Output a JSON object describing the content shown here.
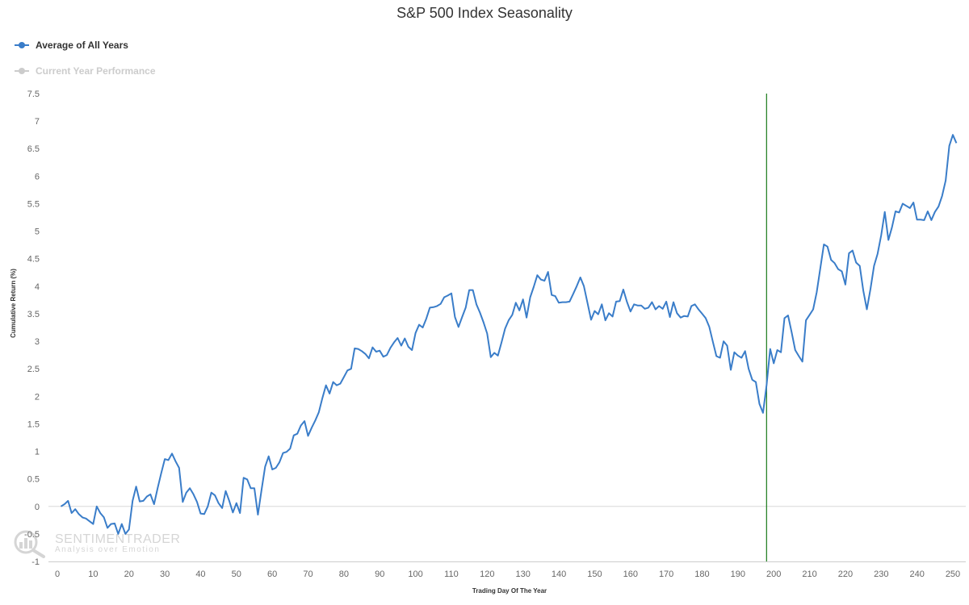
{
  "chart_data": {
    "type": "line",
    "title": "S&P 500 Index Seasonality",
    "xlabel": "Trading Day Of The Year",
    "ylabel": "Cumulative Return (%)",
    "xlim": [
      0,
      252
    ],
    "ylim": [
      -1,
      7.5
    ],
    "x_ticks": [
      "0",
      "10",
      "20",
      "30",
      "40",
      "50",
      "60",
      "70",
      "80",
      "90",
      "100",
      "110",
      "120",
      "130",
      "140",
      "150",
      "160",
      "170",
      "180",
      "190",
      "200",
      "210",
      "220",
      "230",
      "240",
      "250"
    ],
    "x_tick_values": [
      0,
      10,
      20,
      30,
      40,
      50,
      60,
      70,
      80,
      90,
      100,
      110,
      120,
      130,
      140,
      150,
      160,
      170,
      180,
      190,
      200,
      210,
      220,
      230,
      240,
      250
    ],
    "y_ticks": [
      "-1",
      "-0.5",
      "0",
      "0.5",
      "1",
      "1.5",
      "2",
      "2.5",
      "3",
      "3.5",
      "4",
      "4.5",
      "5",
      "5.5",
      "6",
      "6.5",
      "7",
      "7.5"
    ],
    "y_tick_values": [
      -1,
      -0.5,
      0,
      0.5,
      1,
      1.5,
      2,
      2.5,
      3,
      3.5,
      4,
      4.5,
      5,
      5.5,
      6,
      6.5,
      7,
      7.5
    ],
    "grid": false,
    "reference_line": {
      "y": 0
    },
    "marker_line": {
      "x": 198,
      "color": "#1a7a1a"
    },
    "legend": {
      "position": "top-left"
    },
    "series": [
      {
        "name": "Average of All Years",
        "color": "#3a7dc9",
        "visible": true,
        "x": [
          1,
          2,
          3,
          4,
          5,
          6,
          7,
          8,
          9,
          10,
          11,
          12,
          13,
          14,
          15,
          16,
          17,
          18,
          19,
          20,
          21,
          22,
          23,
          24,
          25,
          26,
          27,
          28,
          29,
          30,
          31,
          32,
          33,
          34,
          35,
          36,
          37,
          38,
          39,
          40,
          41,
          42,
          43,
          44,
          45,
          46,
          47,
          48,
          49,
          50,
          51,
          52,
          53,
          54,
          55,
          56,
          57,
          58,
          59,
          60,
          61,
          62,
          63,
          64,
          65,
          66,
          67,
          68,
          69,
          70,
          71,
          72,
          73,
          74,
          75,
          76,
          77,
          78,
          79,
          80,
          81,
          82,
          83,
          84,
          85,
          86,
          87,
          88,
          89,
          90,
          91,
          92,
          93,
          94,
          95,
          96,
          97,
          98,
          99,
          100,
          101,
          102,
          103,
          104,
          105,
          106,
          107,
          108,
          109,
          110,
          111,
          112,
          113,
          114,
          115,
          116,
          117,
          118,
          119,
          120,
          121,
          122,
          123,
          124,
          125,
          126,
          127,
          128,
          129,
          130,
          131,
          132,
          133,
          134,
          135,
          136,
          137,
          138,
          139,
          140,
          141,
          142,
          143,
          144,
          145,
          146,
          147,
          148,
          149,
          150,
          151,
          152,
          153,
          154,
          155,
          156,
          157,
          158,
          159,
          160,
          161,
          162,
          163,
          164,
          165,
          166,
          167,
          168,
          169,
          170,
          171,
          172,
          173,
          174,
          175,
          176,
          177,
          178,
          179,
          180,
          181,
          182,
          183,
          184,
          185,
          186,
          187,
          188,
          189,
          190,
          191,
          192,
          193,
          194,
          195,
          196,
          197,
          198,
          199,
          200,
          201,
          202,
          203,
          204,
          205,
          206,
          207,
          208,
          209,
          210,
          211,
          212,
          213,
          214,
          215,
          216,
          217,
          218,
          219,
          220,
          221,
          222,
          223,
          224,
          225,
          226,
          227,
          228,
          229,
          230,
          231,
          232,
          233,
          234,
          235,
          236,
          237,
          238,
          239,
          240,
          241,
          242,
          243,
          244,
          245,
          246,
          247,
          248,
          249,
          250,
          251
        ],
        "y": [
          0.0,
          0.04,
          0.1,
          -0.12,
          -0.05,
          -0.14,
          -0.2,
          -0.22,
          -0.27,
          -0.32,
          0.0,
          -0.12,
          -0.2,
          -0.39,
          -0.32,
          -0.31,
          -0.5,
          -0.32,
          -0.5,
          -0.42,
          0.1,
          0.36,
          0.09,
          0.1,
          0.18,
          0.22,
          0.04,
          0.33,
          0.6,
          0.86,
          0.84,
          0.96,
          0.82,
          0.7,
          0.08,
          0.25,
          0.33,
          0.22,
          0.08,
          -0.13,
          -0.14,
          0.0,
          0.25,
          0.2,
          0.06,
          -0.03,
          0.28,
          0.1,
          -0.11,
          0.06,
          -0.12,
          0.52,
          0.49,
          0.33,
          0.33,
          -0.15,
          0.3,
          0.72,
          0.91,
          0.67,
          0.7,
          0.8,
          0.97,
          0.99,
          1.05,
          1.29,
          1.32,
          1.47,
          1.55,
          1.28,
          1.43,
          1.56,
          1.71,
          1.97,
          2.2,
          2.05,
          2.26,
          2.2,
          2.23,
          2.35,
          2.47,
          2.5,
          2.87,
          2.86,
          2.82,
          2.77,
          2.69,
          2.89,
          2.81,
          2.83,
          2.72,
          2.75,
          2.88,
          2.98,
          3.06,
          2.92,
          3.05,
          2.9,
          2.84,
          3.15,
          3.3,
          3.25,
          3.41,
          3.61,
          3.62,
          3.64,
          3.68,
          3.8,
          3.83,
          3.87,
          3.44,
          3.26,
          3.44,
          3.61,
          3.93,
          3.93,
          3.67,
          3.52,
          3.34,
          3.14,
          2.71,
          2.79,
          2.74,
          2.98,
          3.23,
          3.38,
          3.48,
          3.7,
          3.56,
          3.76,
          3.43,
          3.8,
          3.99,
          4.2,
          4.12,
          4.1,
          4.26,
          3.84,
          3.82,
          3.7,
          3.71,
          3.71,
          3.72,
          3.86,
          4.0,
          4.16,
          4.0,
          3.7,
          3.39,
          3.55,
          3.49,
          3.67,
          3.38,
          3.51,
          3.45,
          3.72,
          3.73,
          3.94,
          3.72,
          3.54,
          3.67,
          3.65,
          3.65,
          3.59,
          3.61,
          3.71,
          3.58,
          3.64,
          3.59,
          3.72,
          3.44,
          3.71,
          3.51,
          3.43,
          3.46,
          3.45,
          3.64,
          3.67,
          3.58,
          3.5,
          3.42,
          3.26,
          2.99,
          2.73,
          2.7,
          3.0,
          2.92,
          2.48,
          2.8,
          2.74,
          2.7,
          2.82,
          2.5,
          2.3,
          2.26,
          1.86,
          1.7,
          2.2,
          2.86,
          2.6,
          2.84,
          2.8,
          3.42,
          3.47,
          3.16,
          2.84,
          2.73,
          2.63,
          3.38,
          3.48,
          3.58,
          3.89,
          4.33,
          4.76,
          4.72,
          4.48,
          4.42,
          4.31,
          4.27,
          4.03,
          4.6,
          4.65,
          4.43,
          4.37,
          3.92,
          3.58,
          3.95,
          4.37,
          4.59,
          4.93,
          5.35,
          4.84,
          5.07,
          5.36,
          5.34,
          5.5,
          5.46,
          5.42,
          5.52,
          5.21,
          5.21,
          5.2,
          5.36,
          5.2,
          5.35,
          5.45,
          5.64,
          5.92,
          6.55,
          6.75,
          6.6
        ]
      },
      {
        "name": "Current Year Performance",
        "color": "#cccccc",
        "visible": false
      }
    ]
  },
  "watermark": {
    "name": "SENTIMENTRADER",
    "tagline": "Analysis over Emotion",
    "icon": "magnifier-bar-chart-icon"
  }
}
